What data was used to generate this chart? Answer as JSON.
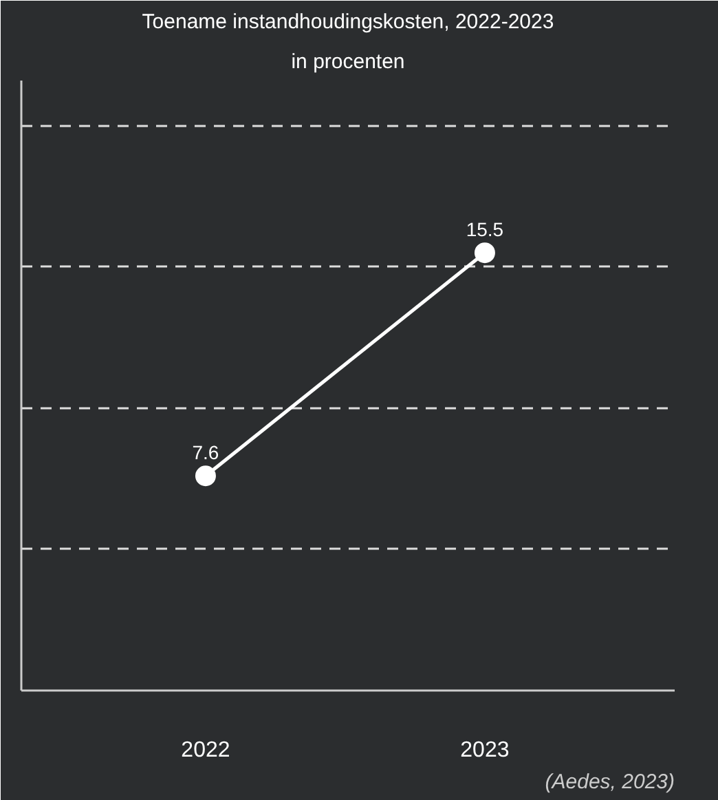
{
  "chart_data": {
    "type": "line",
    "title": "Toename instandhoudingskosten, 2022-2023",
    "subtitle": "in procenten",
    "categories": [
      "2022",
      "2023"
    ],
    "series": [
      {
        "color": "#ffffff",
        "values": [
          7.6,
          15.5
        ]
      }
    ],
    "ylim": [
      0,
      21.6
    ],
    "yticks": [
      {
        "value": 5,
        "label": null
      },
      {
        "value": 10,
        "label": null
      },
      {
        "value": 15,
        "label": null
      },
      {
        "value": 20,
        "label": null
      }
    ],
    "tick_labels": "x",
    "grid": "y",
    "marker": "circle",
    "line_style": "solid",
    "data_labels": true,
    "annotations": [
      "(Aedes, 2023)"
    ]
  }
}
